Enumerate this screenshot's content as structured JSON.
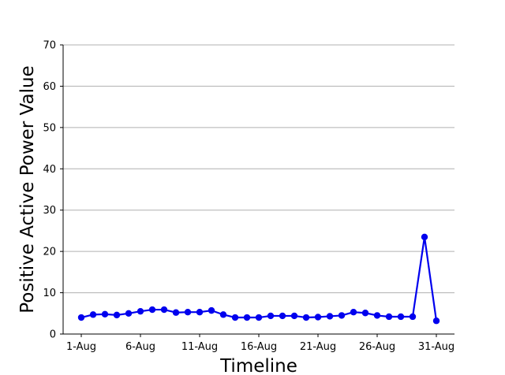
{
  "chart_data": {
    "type": "line",
    "title": "",
    "xlabel": "Timeline",
    "ylabel": "Positive Active Power Value",
    "ylim": [
      0,
      70
    ],
    "yticks": [
      0,
      10,
      20,
      30,
      40,
      50,
      60,
      70
    ],
    "grid": "horizontal",
    "legend": "none",
    "x": [
      "1-Aug",
      "2-Aug",
      "3-Aug",
      "4-Aug",
      "5-Aug",
      "6-Aug",
      "7-Aug",
      "8-Aug",
      "9-Aug",
      "10-Aug",
      "11-Aug",
      "12-Aug",
      "13-Aug",
      "14-Aug",
      "15-Aug",
      "16-Aug",
      "17-Aug",
      "18-Aug",
      "19-Aug",
      "20-Aug",
      "21-Aug",
      "22-Aug",
      "23-Aug",
      "24-Aug",
      "25-Aug",
      "26-Aug",
      "27-Aug",
      "28-Aug",
      "29-Aug",
      "30-Aug",
      "31-Aug"
    ],
    "xtick_labels": [
      "1-Aug",
      "6-Aug",
      "11-Aug",
      "16-Aug",
      "21-Aug",
      "26-Aug",
      "31-Aug"
    ],
    "series": [
      {
        "color": "#0000ee",
        "values": [
          4.0,
          4.7,
          4.8,
          4.6,
          5.0,
          5.5,
          5.9,
          5.9,
          5.2,
          5.3,
          5.3,
          5.7,
          4.7,
          4.0,
          4.0,
          4.0,
          4.4,
          4.4,
          4.4,
          4.0,
          4.1,
          4.3,
          4.5,
          5.3,
          5.1,
          4.5,
          4.2,
          4.2,
          4.2,
          23.5,
          3.2
        ]
      }
    ]
  }
}
